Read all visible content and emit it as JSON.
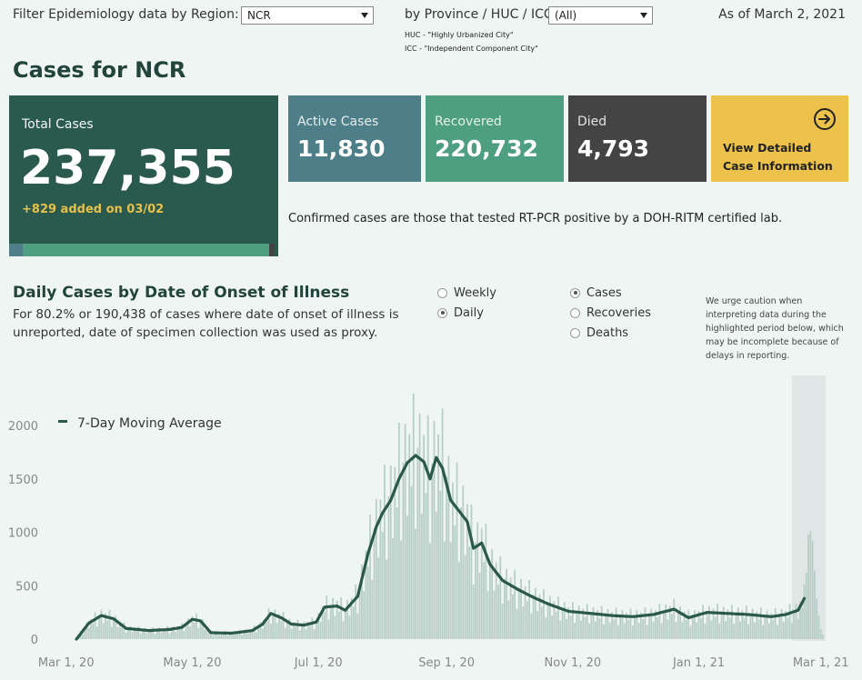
{
  "filters": {
    "region_label": "Filter Epidemiology data by Region:",
    "region_value": "NCR",
    "province_label": "by Province / HUC / ICC:",
    "province_value": "(All)",
    "huc_note": "HUC - \"Highly Urbanized City\"",
    "icc_note": "ICC - \"Independent Component City\""
  },
  "as_of": "As of March 2, 2021",
  "page_title": "Cases for NCR",
  "total": {
    "label": "Total Cases",
    "value": "237,355",
    "added": "+829 added on 03/02"
  },
  "active": {
    "label": "Active Cases",
    "value": "11,830",
    "share": 0.0498,
    "color": "#4e7f88"
  },
  "recovered": {
    "label": "Recovered",
    "value": "220,732",
    "share": 0.93,
    "color": "#4e9f81"
  },
  "died": {
    "label": "Died",
    "value": "4,793",
    "share": 0.0202,
    "color": "#444444"
  },
  "detail_button": {
    "line1": "View Detailed",
    "line2": "Case Information"
  },
  "confirmed_note": "Confirmed cases are those that tested RT-PCR positive by a DOH-RITM certified lab.",
  "section": {
    "title": "Daily Cases by Date of Onset of Illness",
    "subtitle_line1": "For 80.2% or 190,438 of cases where date of onset of illness is",
    "subtitle_line2": "unreported, date of specimen collection was used as proxy."
  },
  "period_options": [
    {
      "label": "Weekly",
      "selected": false
    },
    {
      "label": "Daily",
      "selected": true
    }
  ],
  "measure_options": [
    {
      "label": "Cases",
      "selected": true
    },
    {
      "label": "Recoveries",
      "selected": false
    },
    {
      "label": "Deaths",
      "selected": false
    }
  ],
  "caution": [
    "We urge caution when",
    "interpreting data during the",
    "highlighted period below, which",
    "may be incomplete because of",
    "delays in reporting."
  ],
  "chart_data": {
    "type": "bar",
    "legend": "7-Day Moving Average",
    "legend_position": "top-left",
    "ylim": [
      0,
      2000
    ],
    "y_ticks": [
      0,
      500,
      1000,
      1500,
      2000
    ],
    "x_ticks": [
      "Mar 1, 20",
      "May 1, 20",
      "Jul 1, 20",
      "Sep 1, 20",
      "Nov 1, 20",
      "Jan 1, 21",
      "Mar 1, 21"
    ],
    "x_range": [
      "2020-02-20",
      "2021-03-02"
    ],
    "highlight_range": [
      "2021-02-15",
      "2021-03-02"
    ],
    "bar_color": "#b9cec7",
    "line_color": "#2a5a47",
    "moving_average_anchors": [
      [
        "2020-03-06",
        0
      ],
      [
        "2020-03-12",
        150
      ],
      [
        "2020-03-18",
        220
      ],
      [
        "2020-03-24",
        190
      ],
      [
        "2020-03-30",
        100
      ],
      [
        "2020-04-10",
        80
      ],
      [
        "2020-04-20",
        90
      ],
      [
        "2020-04-26",
        110
      ],
      [
        "2020-05-01",
        185
      ],
      [
        "2020-05-05",
        170
      ],
      [
        "2020-05-10",
        60
      ],
      [
        "2020-05-20",
        55
      ],
      [
        "2020-05-30",
        80
      ],
      [
        "2020-06-04",
        140
      ],
      [
        "2020-06-08",
        240
      ],
      [
        "2020-06-13",
        200
      ],
      [
        "2020-06-18",
        140
      ],
      [
        "2020-06-24",
        130
      ],
      [
        "2020-06-30",
        160
      ],
      [
        "2020-07-04",
        300
      ],
      [
        "2020-07-10",
        310
      ],
      [
        "2020-07-14",
        270
      ],
      [
        "2020-07-20",
        400
      ],
      [
        "2020-07-25",
        800
      ],
      [
        "2020-07-29",
        1050
      ],
      [
        "2020-08-01",
        1180
      ],
      [
        "2020-08-05",
        1300
      ],
      [
        "2020-08-09",
        1500
      ],
      [
        "2020-08-13",
        1650
      ],
      [
        "2020-08-17",
        1720
      ],
      [
        "2020-08-21",
        1660
      ],
      [
        "2020-08-24",
        1500
      ],
      [
        "2020-08-27",
        1700
      ],
      [
        "2020-08-30",
        1600
      ],
      [
        "2020-09-03",
        1300
      ],
      [
        "2020-09-07",
        1200
      ],
      [
        "2020-09-11",
        1100
      ],
      [
        "2020-09-14",
        850
      ],
      [
        "2020-09-18",
        900
      ],
      [
        "2020-09-22",
        700
      ],
      [
        "2020-09-28",
        550
      ],
      [
        "2020-10-05",
        470
      ],
      [
        "2020-10-12",
        400
      ],
      [
        "2020-10-20",
        330
      ],
      [
        "2020-10-30",
        260
      ],
      [
        "2020-11-10",
        240
      ],
      [
        "2020-11-20",
        220
      ],
      [
        "2020-11-30",
        210
      ],
      [
        "2020-12-10",
        230
      ],
      [
        "2020-12-20",
        280
      ],
      [
        "2020-12-27",
        200
      ],
      [
        "2021-01-05",
        250
      ],
      [
        "2021-01-15",
        240
      ],
      [
        "2021-01-25",
        230
      ],
      [
        "2021-02-05",
        210
      ],
      [
        "2021-02-12",
        230
      ],
      [
        "2021-02-18",
        270
      ],
      [
        "2021-02-21",
        380
      ]
    ]
  }
}
